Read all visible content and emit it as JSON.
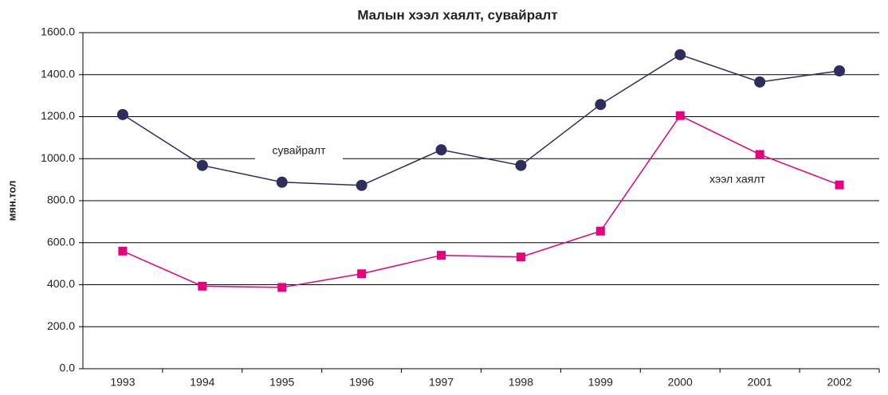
{
  "chart_data": {
    "type": "line",
    "title": "Малын хээл хаялт, сувайралт",
    "y_label": "мян.тол",
    "categories": [
      "1993",
      "1994",
      "1995",
      "1996",
      "1997",
      "1998",
      "1999",
      "2000",
      "2001",
      "2002"
    ],
    "series": [
      {
        "name": "сувайралт",
        "color": "#2e2e5e",
        "marker": "circle",
        "values": [
          1210,
          968,
          888,
          873,
          1042,
          968,
          1258,
          1495,
          1365,
          1418
        ]
      },
      {
        "name": "хээл хаялт",
        "color": "#e6007e",
        "marker": "square",
        "values": [
          560,
          393,
          387,
          452,
          540,
          532,
          655,
          1205,
          1020,
          875
        ]
      }
    ],
    "ylim": [
      0,
      1600
    ],
    "yticks": [
      {
        "value": 0,
        "label": "0.0"
      },
      {
        "value": 200,
        "label": "200.0"
      },
      {
        "value": 400,
        "label": "400.0"
      },
      {
        "value": 600,
        "label": "600.0"
      },
      {
        "value": 800,
        "label": "800.0"
      },
      {
        "value": 1000,
        "label": "1000.0"
      },
      {
        "value": 1200,
        "label": "1200.0"
      },
      {
        "value": 1400,
        "label": "1400.0"
      },
      {
        "value": 1600,
        "label": "1600.0"
      }
    ],
    "grid": true
  }
}
